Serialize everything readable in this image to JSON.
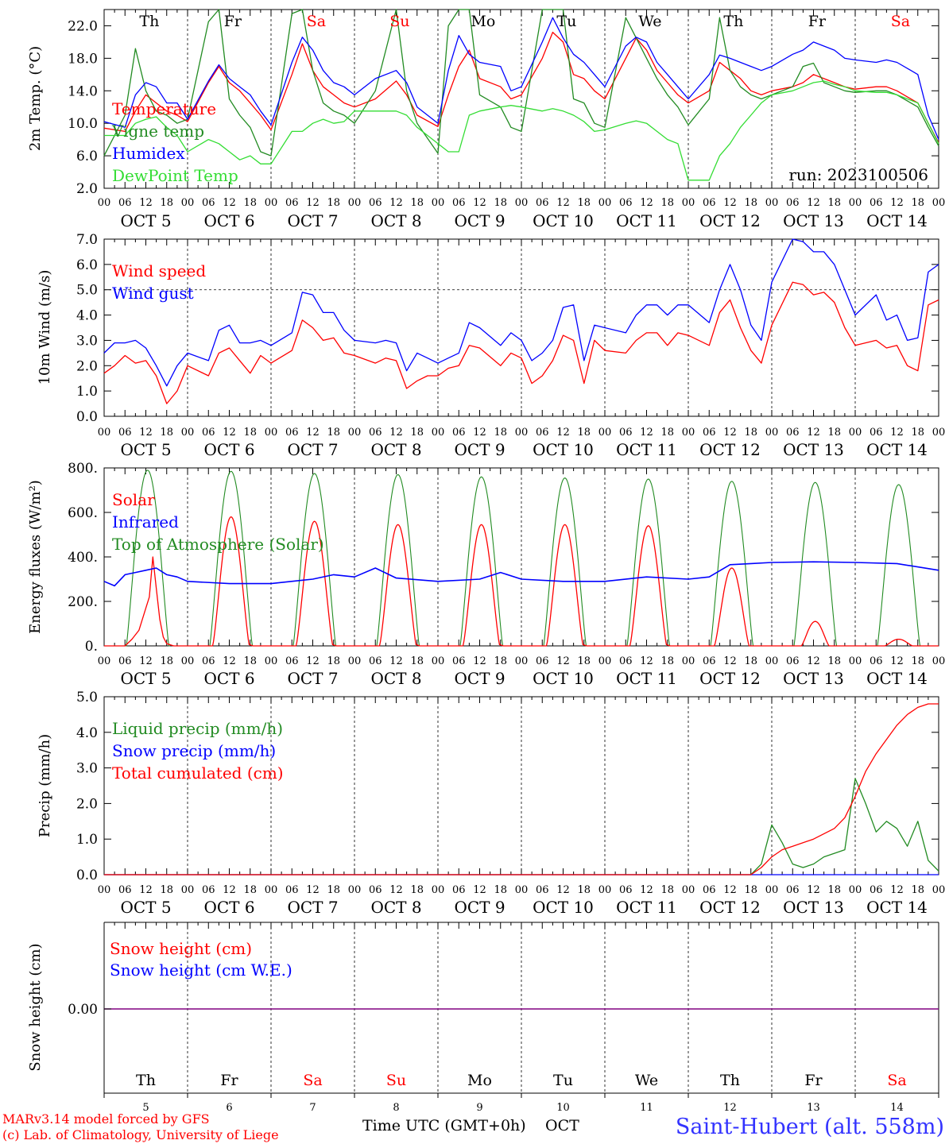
{
  "chart_data": [
    {
      "type": "line",
      "ylabel": "2m Temp. (°C)",
      "ylim": [
        2,
        24
      ],
      "yticks": [
        "2.0",
        "6.0",
        "10.0",
        "14.0",
        "18.0",
        "22.0"
      ],
      "run_label": "run: 2023100506",
      "legend": [
        "Temperature",
        "Vigne temp",
        "Humidex",
        "DewPoint Temp"
      ],
      "day_of_week": [
        "Th",
        "Fr",
        "Sa",
        "Su",
        "Mo",
        "Tu",
        "We",
        "Th",
        "Fr",
        "Sa"
      ],
      "x_hours": [
        0,
        6,
        9,
        12,
        15,
        18,
        21,
        24,
        30,
        33,
        36,
        39,
        42,
        45,
        48,
        54,
        57,
        60,
        63,
        66,
        69,
        72,
        78,
        84,
        87,
        90,
        96,
        99,
        102,
        105,
        108,
        114,
        117,
        120,
        126,
        129,
        132,
        135,
        138,
        141,
        144,
        150,
        153,
        156,
        159,
        162,
        165,
        168,
        174,
        177,
        180,
        183,
        186,
        189,
        192,
        198,
        201,
        204,
        207,
        210,
        213,
        216,
        222,
        225,
        228,
        234,
        237,
        240
      ],
      "series": [
        {
          "name": "Temperature",
          "color": "#ff0000",
          "values": [
            9.4,
            9.0,
            11.5,
            13.5,
            12.5,
            11.5,
            11.0,
            10.2,
            15.0,
            17.0,
            15.0,
            14.0,
            12.5,
            11.0,
            9.2,
            16.0,
            19.8,
            16.5,
            14.5,
            13.5,
            12.5,
            12.0,
            13.0,
            15.2,
            13.5,
            11.0,
            9.6,
            13.5,
            17.0,
            19.0,
            15.5,
            14.5,
            13.0,
            13.5,
            18.0,
            21.2,
            20.0,
            16.0,
            15.5,
            14.0,
            13.0,
            18.0,
            20.5,
            19.0,
            16.5,
            15.0,
            13.5,
            12.5,
            14.0,
            17.5,
            16.5,
            15.5,
            14.0,
            13.5,
            14.0,
            14.5,
            15.0,
            16.0,
            15.5,
            15.0,
            14.5,
            14.2,
            14.5,
            14.5,
            14.0,
            12.5,
            10.0,
            7.6
          ]
        },
        {
          "name": "Vigne temp",
          "color": "#228b22",
          "values": [
            6.0,
            11.0,
            19.2,
            14.0,
            11.5,
            11.0,
            10.0,
            10.5,
            22.5,
            24.0,
            13.0,
            11.0,
            9.5,
            6.5,
            6.0,
            23.5,
            24.0,
            16.5,
            12.5,
            11.5,
            11.0,
            10.0,
            14.0,
            24.0,
            14.0,
            10.0,
            6.3,
            22.0,
            24.0,
            24.0,
            13.5,
            12.0,
            9.5,
            9.0,
            24.0,
            24.0,
            24.0,
            13.0,
            12.5,
            10.0,
            9.5,
            23.0,
            20.5,
            18.0,
            15.5,
            13.5,
            12.0,
            9.8,
            13.0,
            23.0,
            16.5,
            14.5,
            13.5,
            13.0,
            13.5,
            14.5,
            17.0,
            17.4,
            15.0,
            14.5,
            14.0,
            13.8,
            14.0,
            14.0,
            13.5,
            12.0,
            9.5,
            7.2
          ]
        },
        {
          "name": "Humidex",
          "color": "#0000ff",
          "values": [
            10.2,
            9.5,
            13.5,
            15.0,
            14.5,
            12.5,
            12.5,
            10.5,
            15.2,
            17.2,
            15.5,
            14.5,
            13.5,
            11.5,
            9.8,
            17.5,
            20.6,
            19.0,
            16.5,
            15.0,
            14.5,
            13.5,
            15.5,
            16.5,
            15.0,
            12.0,
            10.0,
            16.5,
            20.8,
            18.5,
            17.5,
            17.0,
            14.0,
            14.5,
            20.0,
            23.0,
            20.5,
            18.5,
            17.5,
            16.0,
            14.5,
            19.5,
            20.6,
            20.0,
            17.5,
            16.0,
            14.5,
            13.0,
            16.0,
            18.4,
            18.0,
            17.5,
            17.0,
            16.5,
            17.0,
            18.5,
            19.0,
            20.0,
            19.5,
            19.0,
            18.0,
            17.8,
            17.5,
            17.8,
            17.5,
            16.0,
            11.0,
            8.0
          ]
        },
        {
          "name": "DewPoint Temp",
          "color": "#33dd33",
          "values": [
            8.5,
            8.5,
            10.0,
            10.5,
            10.8,
            9.5,
            8.5,
            6.5,
            8.0,
            7.5,
            6.5,
            5.5,
            6.0,
            5.0,
            5.0,
            9.0,
            9.0,
            10.0,
            10.5,
            10.0,
            10.2,
            11.5,
            11.5,
            11.5,
            11.0,
            9.5,
            7.5,
            6.5,
            6.5,
            11.0,
            11.5,
            12.0,
            12.2,
            12.0,
            11.5,
            11.8,
            11.5,
            11.0,
            10.2,
            9.0,
            9.2,
            10.0,
            10.3,
            10.0,
            9.0,
            8.0,
            7.5,
            3.0,
            3.0,
            6.0,
            7.5,
            9.5,
            11.0,
            12.5,
            13.5,
            14.0,
            14.5,
            15.0,
            15.2,
            14.8,
            14.5,
            14.0,
            13.8,
            13.8,
            13.5,
            12.5,
            10.0,
            7.5
          ]
        }
      ]
    },
    {
      "type": "line",
      "ylabel": "10m Wind (m/s)",
      "ylim": [
        0,
        7
      ],
      "yticks": [
        "0.0",
        "1.0",
        "2.0",
        "3.0",
        "4.0",
        "5.0",
        "6.0",
        "7.0"
      ],
      "reference_line": 5.0,
      "legend": [
        "Wind speed",
        "Wind gust"
      ],
      "x_hours": [
        0,
        3,
        6,
        9,
        12,
        15,
        18,
        21,
        24,
        30,
        33,
        36,
        39,
        42,
        45,
        48,
        54,
        57,
        60,
        63,
        66,
        69,
        72,
        78,
        81,
        84,
        87,
        90,
        93,
        96,
        99,
        102,
        105,
        108,
        114,
        117,
        120,
        123,
        126,
        129,
        132,
        135,
        138,
        141,
        144,
        150,
        153,
        156,
        159,
        162,
        165,
        168,
        174,
        177,
        180,
        183,
        186,
        189,
        192,
        198,
        201,
        204,
        207,
        210,
        213,
        216,
        222,
        225,
        228,
        231,
        234,
        237,
        240
      ],
      "series": [
        {
          "name": "Wind speed",
          "color": "#ff0000",
          "values": [
            1.7,
            2.0,
            2.4,
            2.1,
            2.2,
            1.6,
            0.5,
            1.0,
            2.0,
            1.6,
            2.5,
            2.7,
            2.2,
            1.7,
            2.4,
            2.1,
            2.6,
            3.8,
            3.5,
            3.0,
            3.1,
            2.5,
            2.4,
            2.1,
            2.3,
            2.2,
            1.1,
            1.4,
            1.6,
            1.6,
            1.9,
            2.0,
            2.8,
            2.7,
            2.0,
            2.5,
            2.3,
            1.3,
            1.6,
            2.2,
            3.2,
            3.0,
            1.3,
            3.0,
            2.6,
            2.5,
            3.0,
            3.3,
            3.3,
            2.8,
            3.3,
            3.2,
            2.8,
            4.1,
            4.6,
            3.5,
            2.6,
            2.1,
            3.6,
            5.3,
            5.2,
            4.8,
            4.9,
            4.5,
            3.5,
            2.8,
            3.0,
            2.7,
            2.8,
            2.0,
            1.8,
            4.4,
            4.6
          ]
        },
        {
          "name": "Wind gust",
          "color": "#0000ff",
          "values": [
            2.5,
            2.9,
            2.9,
            3.0,
            2.7,
            2.0,
            1.2,
            2.0,
            2.5,
            2.2,
            3.4,
            3.6,
            2.9,
            2.9,
            3.0,
            2.8,
            3.3,
            4.9,
            4.8,
            4.1,
            4.1,
            3.4,
            3.0,
            2.9,
            3.0,
            2.9,
            1.8,
            2.5,
            2.3,
            2.1,
            2.3,
            2.5,
            3.7,
            3.5,
            2.8,
            3.3,
            3.0,
            2.2,
            2.5,
            3.0,
            4.3,
            4.4,
            2.2,
            3.6,
            3.5,
            3.3,
            4.0,
            4.4,
            4.4,
            4.0,
            4.4,
            4.4,
            3.7,
            5.0,
            6.0,
            5.0,
            3.6,
            3.0,
            5.3,
            7.0,
            6.9,
            6.5,
            6.5,
            6.0,
            5.0,
            4.0,
            4.8,
            3.8,
            4.0,
            3.0,
            3.1,
            5.7,
            6.0
          ]
        }
      ]
    },
    {
      "type": "line",
      "ylabel": "Energy fluxes (W/m²)",
      "ylim": [
        0,
        800
      ],
      "yticks": [
        "0.",
        "200.",
        "400.",
        "600.",
        "800."
      ],
      "legend": [
        "Solar",
        "Infrared",
        "Top of Atmosphere (Solar)"
      ],
      "solar_noon_hour": 12.5,
      "toa_peaks": [
        790,
        785,
        775,
        770,
        760,
        755,
        750,
        740,
        735,
        725
      ],
      "toa_half_width_h": 6.1,
      "solar_peaks": [
        400,
        580,
        560,
        545,
        545,
        545,
        540,
        350,
        110,
        30
      ],
      "solar_half_width_h": [
        5.0,
        5.3,
        5.3,
        5.3,
        5.3,
        5.3,
        5.3,
        5.0,
        4.0,
        4.0
      ],
      "solar_day5": {
        "x_hours": [
          6,
          8,
          10,
          12,
          13,
          14,
          15,
          16,
          17,
          18,
          20
        ],
        "values": [
          0,
          30,
          70,
          170,
          220,
          400,
          260,
          120,
          40,
          10,
          0
        ]
      },
      "series": [
        {
          "name": "Infrared",
          "color": "#0000ff",
          "x_hours": [
            0,
            3,
            6,
            9,
            12,
            15,
            18,
            21,
            24,
            36,
            48,
            60,
            66,
            72,
            78,
            84,
            96,
            108,
            114,
            120,
            132,
            144,
            156,
            168,
            174,
            180,
            186,
            192,
            204,
            216,
            228,
            240
          ],
          "values": [
            290,
            270,
            320,
            330,
            340,
            350,
            320,
            310,
            290,
            280,
            280,
            300,
            320,
            310,
            350,
            305,
            290,
            300,
            330,
            300,
            290,
            290,
            310,
            300,
            310,
            365,
            370,
            375,
            378,
            375,
            370,
            340
          ]
        }
      ]
    },
    {
      "type": "line",
      "ylabel": "Precip (mm/h)",
      "ylim": [
        0,
        5
      ],
      "yticks": [
        "0.0",
        "1.0",
        "2.0",
        "3.0",
        "4.0",
        "5.0"
      ],
      "legend": [
        "Liquid precip (mm/h)",
        "Snow precip (mm/h)",
        "Total cumulated (cm)"
      ],
      "series": [
        {
          "name": "Liquid precip (mm/h)",
          "color": "#228b22",
          "x_hours": [
            0,
            186,
            189,
            192,
            195,
            198,
            201,
            204,
            207,
            210,
            213,
            216,
            219,
            222,
            225,
            228,
            231,
            234,
            237,
            240
          ],
          "values": [
            0,
            0,
            0.3,
            1.4,
            0.9,
            0.3,
            0.2,
            0.3,
            0.5,
            0.6,
            0.7,
            2.7,
            2.0,
            1.2,
            1.5,
            1.3,
            0.8,
            1.5,
            0.4,
            0.1
          ]
        },
        {
          "name": "Snow precip (mm/h)",
          "color": "#0000ff",
          "x_hours": [
            0,
            240
          ],
          "values": [
            0,
            0
          ]
        },
        {
          "name": "Total cumulated (cm)",
          "color": "#ff0000",
          "x_hours": [
            0,
            186,
            189,
            192,
            195,
            198,
            204,
            210,
            213,
            216,
            219,
            222,
            225,
            228,
            231,
            234,
            237,
            240
          ],
          "values": [
            0,
            0,
            0.2,
            0.5,
            0.7,
            0.8,
            1.0,
            1.3,
            1.6,
            2.2,
            2.9,
            3.4,
            3.8,
            4.2,
            4.5,
            4.7,
            4.8,
            4.8
          ]
        }
      ]
    },
    {
      "type": "line",
      "ylabel": "Snow height (cm)",
      "yticks": [
        "0.00"
      ],
      "legend": [
        "Snow height (cm)",
        "Snow height (cm W.E.)"
      ],
      "series": [
        {
          "name": "Snow height (cm)",
          "color": "#ff0000",
          "x_hours": [
            0,
            240
          ],
          "values": [
            0,
            0
          ]
        },
        {
          "name": "Snow height (cm W.E.)",
          "color": "#0000ff",
          "x_hours": [
            0,
            240
          ],
          "values": [
            0,
            0
          ]
        }
      ]
    }
  ],
  "x_axis": {
    "hour_ticks": [
      "00",
      "06",
      "12",
      "18"
    ],
    "final_tick": "00",
    "days": [
      "OCT  5",
      "OCT  6",
      "OCT  7",
      "OCT  8",
      "OCT  9",
      "OCT 10",
      "OCT 11",
      "OCT 12",
      "OCT 13",
      "OCT 14"
    ],
    "day_numbers": [
      "5",
      "6",
      "7",
      "8",
      "9",
      "10",
      "11",
      "12",
      "13",
      "14"
    ],
    "xlabel": "Time UTC (GMT+0h)",
    "month_label": "OCT"
  },
  "colors": {
    "weekday": "#000000",
    "weekend": "#ff0000",
    "credit": "#ff0000",
    "station": "#3333ff",
    "legend_green": "#228b22",
    "legend_light_green": "#33dd33",
    "legend_blue": "#0000ff",
    "legend_red": "#ff0000",
    "snow_line": "#800080"
  },
  "weekend_days": [
    2,
    3,
    9
  ],
  "footer": {
    "credit_line1": "MARv3.14 model forced by GFS",
    "credit_line2": "(c) Lab. of Climatology, University of Liege",
    "station": "Saint-Hubert (alt. 558m)"
  }
}
